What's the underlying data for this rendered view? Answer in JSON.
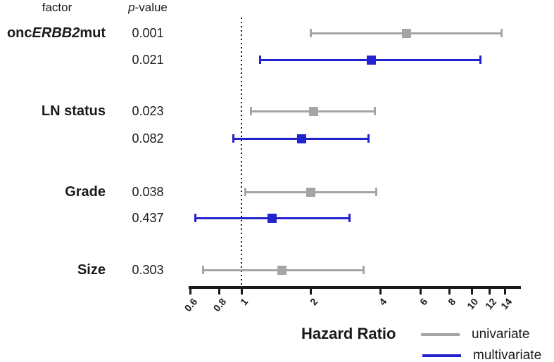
{
  "headers": {
    "factor": "factor",
    "pvalue_italic": "p",
    "pvalue_rest": "-value"
  },
  "axis": {
    "title": "Hazard Ratio"
  },
  "legend": {
    "univariate": "univariate",
    "multivariate": "multivariate"
  },
  "colors": {
    "univariate": "#a5a5a5",
    "multivariate": "#2323cd",
    "axis": "#1a1a1a"
  },
  "chart_data": {
    "type": "forest",
    "title": "",
    "xlabel": "Hazard Ratio",
    "x_scale": "log",
    "x_ticks": [
      "0.6",
      "0.8",
      "1",
      "2",
      "4",
      "6",
      "8",
      "10",
      "12",
      "14"
    ],
    "x_range": [
      0.55,
      16
    ],
    "reference_line": 1,
    "legend_entries": [
      "univariate",
      "multivariate"
    ],
    "column_headers": [
      "factor",
      "p-value"
    ],
    "groups": [
      {
        "factor": "oncERBB2mut",
        "gene_italic": "ERBB2",
        "entries": [
          {
            "p_value": "0.001",
            "series": "univariate",
            "hr": 5.2,
            "ci_low": 2.0,
            "ci_high": 13.5
          },
          {
            "p_value": "0.021",
            "series": "multivariate",
            "hr": 3.65,
            "ci_low": 1.2,
            "ci_high": 10.9
          }
        ]
      },
      {
        "factor": "LN status",
        "entries": [
          {
            "p_value": "0.023",
            "series": "univariate",
            "hr": 2.05,
            "ci_low": 1.1,
            "ci_high": 3.8
          },
          {
            "p_value": "0.082",
            "series": "multivariate",
            "hr": 1.82,
            "ci_low": 0.92,
            "ci_high": 3.55
          }
        ]
      },
      {
        "factor": "Grade",
        "entries": [
          {
            "p_value": "0.038",
            "series": "univariate",
            "hr": 2.0,
            "ci_low": 1.04,
            "ci_high": 3.85
          },
          {
            "p_value": "0.437",
            "series": "multivariate",
            "hr": 1.36,
            "ci_low": 0.63,
            "ci_high": 2.95
          }
        ]
      },
      {
        "factor": "Size",
        "entries": [
          {
            "p_value": "0.303",
            "series": "univariate",
            "hr": 1.5,
            "ci_low": 0.68,
            "ci_high": 3.4
          }
        ]
      }
    ]
  }
}
